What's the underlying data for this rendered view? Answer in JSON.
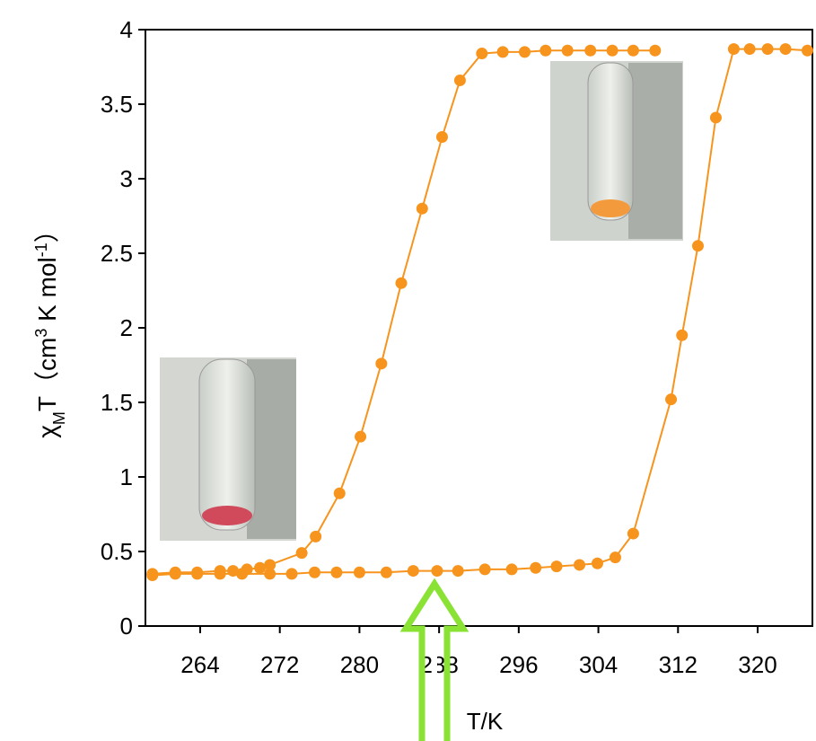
{
  "chart_data": {
    "type": "line",
    "xlabel": "T/K",
    "ylabel": [
      "χ",
      "M",
      "T（cm",
      "3",
      " K mol",
      "-1",
      "）"
    ],
    "xlim": [
      258.5,
      325.5
    ],
    "xticks": [
      264,
      272,
      280,
      288,
      296,
      304,
      312,
      320
    ],
    "ylim": [
      0,
      4
    ],
    "yticks": [
      0,
      0.5,
      1,
      1.5,
      2,
      2.5,
      3,
      3.5,
      4
    ],
    "series": [
      {
        "color": "#f7941d",
        "x": [
          259.2,
          261.5,
          263.7,
          266.0,
          268.2,
          271.0,
          273.2,
          275.5,
          277.7,
          280.0,
          282.7,
          285.4,
          287.8,
          289.9,
          292.6,
          295.3,
          297.7,
          299.8,
          302.1,
          303.9,
          305.7,
          307.5,
          311.3,
          312.4,
          314.0,
          315.8,
          317.6,
          319.2,
          321.0,
          322.8,
          325.0
        ],
        "values": [
          0.34,
          0.35,
          0.35,
          0.35,
          0.35,
          0.35,
          0.35,
          0.36,
          0.36,
          0.36,
          0.36,
          0.37,
          0.37,
          0.37,
          0.38,
          0.38,
          0.39,
          0.4,
          0.41,
          0.42,
          0.46,
          0.62,
          1.52,
          1.95,
          2.55,
          3.41,
          3.87,
          3.87,
          3.87,
          3.87,
          3.86
        ]
      },
      {
        "color": "#f7941d",
        "x": [
          259.2,
          261.5,
          263.7,
          266.0,
          267.3,
          268.7,
          270.0,
          271.0,
          274.2,
          275.6,
          278.0,
          280.1,
          282.2,
          284.2,
          286.3,
          288.3,
          290.1,
          292.3,
          294.4,
          296.6,
          298.7,
          300.9,
          303.2,
          305.4,
          307.5,
          309.7
        ],
        "values": [
          0.35,
          0.36,
          0.36,
          0.37,
          0.37,
          0.38,
          0.39,
          0.41,
          0.49,
          0.6,
          0.89,
          1.27,
          1.76,
          2.3,
          2.8,
          3.28,
          3.66,
          3.84,
          3.85,
          3.85,
          3.86,
          3.86,
          3.86,
          3.86,
          3.86,
          3.86
        ]
      }
    ]
  }
}
